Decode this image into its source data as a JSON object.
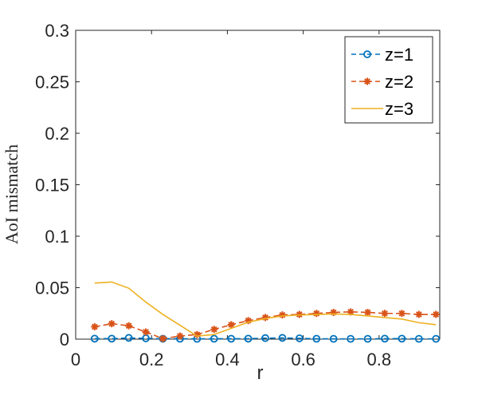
{
  "chart_data": {
    "type": "line",
    "title": "",
    "xlabel": "r",
    "ylabel": "AoI mismatch",
    "xlim": [
      0,
      0.96
    ],
    "ylim": [
      0,
      0.3
    ],
    "xticks": [
      "0",
      "0.2",
      "0.4",
      "0.6",
      "0.8"
    ],
    "xtick_values": [
      0,
      0.2,
      0.4,
      0.6,
      0.8
    ],
    "yticks": [
      "0",
      "0.05",
      "0.1",
      "0.15",
      "0.2",
      "0.25",
      "0.3"
    ],
    "ytick_values": [
      0,
      0.05,
      0.1,
      0.15,
      0.2,
      0.25,
      0.3
    ],
    "grid": false,
    "legend_position": "top-right",
    "x": [
      0.05,
      0.095,
      0.14,
      0.185,
      0.23,
      0.275,
      0.32,
      0.365,
      0.41,
      0.455,
      0.5,
      0.545,
      0.59,
      0.635,
      0.68,
      0.725,
      0.77,
      0.815,
      0.86,
      0.905,
      0.95
    ],
    "series": [
      {
        "name": "z=1",
        "color": "#0072BD",
        "marker": "circle",
        "line_style": "dashed",
        "values": [
          0.0005,
          0.0005,
          0.0012,
          0.0008,
          0.0004,
          0.0004,
          0.0003,
          0.0004,
          0.0004,
          0.0005,
          0.001,
          0.0012,
          0.0008,
          0.0004,
          0.0003,
          0.0003,
          0.0003,
          0.0005,
          0.0005,
          0.0003,
          0.0003
        ]
      },
      {
        "name": "z=2",
        "color": "#D95319",
        "marker": "asterisk",
        "line_style": "dashed",
        "values": [
          0.012,
          0.015,
          0.013,
          0.007,
          0.0005,
          0.003,
          0.0045,
          0.0095,
          0.014,
          0.018,
          0.021,
          0.0235,
          0.024,
          0.025,
          0.026,
          0.0265,
          0.026,
          0.025,
          0.025,
          0.024,
          0.024
        ]
      },
      {
        "name": "z=3",
        "color": "#EDB120",
        "marker": "none",
        "line_style": "solid",
        "values": [
          0.0545,
          0.0555,
          0.0495,
          0.036,
          0.024,
          0.0135,
          0.003,
          0.0045,
          0.0105,
          0.0165,
          0.02,
          0.0225,
          0.0235,
          0.024,
          0.0245,
          0.024,
          0.0225,
          0.021,
          0.0195,
          0.016,
          0.014
        ]
      }
    ]
  }
}
